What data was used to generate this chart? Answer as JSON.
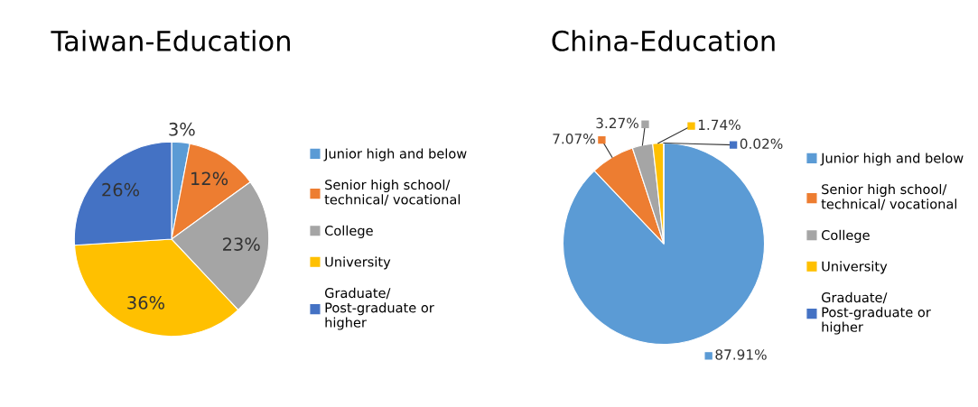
{
  "chart_data": [
    {
      "type": "pie",
      "title": "Taiwan-Education",
      "legend": "right",
      "categories": [
        "Junior high and below",
        "Senior high school/ technical/ vocational",
        "College",
        "University",
        "Graduate/ Post-graduate or higher"
      ],
      "values": [
        3,
        12,
        23,
        36,
        26
      ],
      "value_labels": [
        "3%",
        "12%",
        "23%",
        "36%",
        "26%"
      ],
      "colors": [
        "#5b9bd5",
        "#ed7d31",
        "#a5a5a5",
        "#ffc000",
        "#4472c4"
      ]
    },
    {
      "type": "pie",
      "title": "China-Education",
      "legend": "right",
      "categories": [
        "Junior high and below",
        "Senior high school/ technical/ vocational",
        "College",
        "University",
        "Graduate/ Post-graduate or higher"
      ],
      "values": [
        87.91,
        7.07,
        3.27,
        1.74,
        0.02
      ],
      "value_labels": [
        "87.91%",
        "7.07%",
        "3.27%",
        "1.74%",
        "0.02%"
      ],
      "colors": [
        "#5b9bd5",
        "#ed7d31",
        "#a5a5a5",
        "#ffc000",
        "#4472c4"
      ]
    }
  ]
}
